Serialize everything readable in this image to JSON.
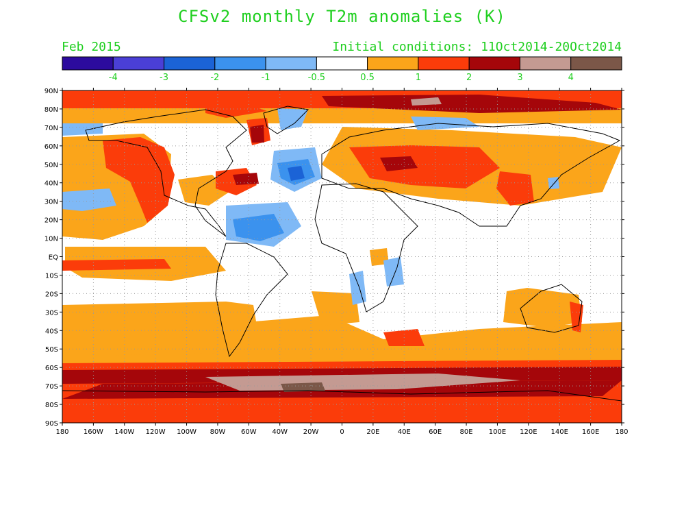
{
  "title": "CFSv2 monthly T2m anomalies (K)",
  "forecast_month": "Feb 2015",
  "initial_conditions": "Initial conditions: 11Oct2014-20Oct2014",
  "colorbar": {
    "colors": [
      "#2c0b9e",
      "#4a3fd6",
      "#1b63d6",
      "#3b92ee",
      "#7fb9f6",
      "#ffffff",
      "#fba51a",
      "#fb3c0a",
      "#a5060a",
      "#c49a92",
      "#7b5748"
    ],
    "labels": [
      "-4",
      "-3",
      "-2",
      "-1",
      "-0.5",
      "0.5",
      "1",
      "2",
      "3",
      "4"
    ]
  },
  "map": {
    "type": "filled-contour world map",
    "lat_labels": [
      "90N",
      "80N",
      "70N",
      "60N",
      "50N",
      "40N",
      "30N",
      "20N",
      "10N",
      "EQ",
      "10S",
      "20S",
      "30S",
      "40S",
      "50S",
      "60S",
      "70S",
      "80S",
      "90S"
    ],
    "lon_labels": [
      "180",
      "160W",
      "140W",
      "120W",
      "100W",
      "80W",
      "60W",
      "40W",
      "20W",
      "0",
      "20E",
      "40E",
      "60E",
      "80E",
      "100E",
      "120E",
      "140E",
      "160E",
      "180"
    ]
  }
}
